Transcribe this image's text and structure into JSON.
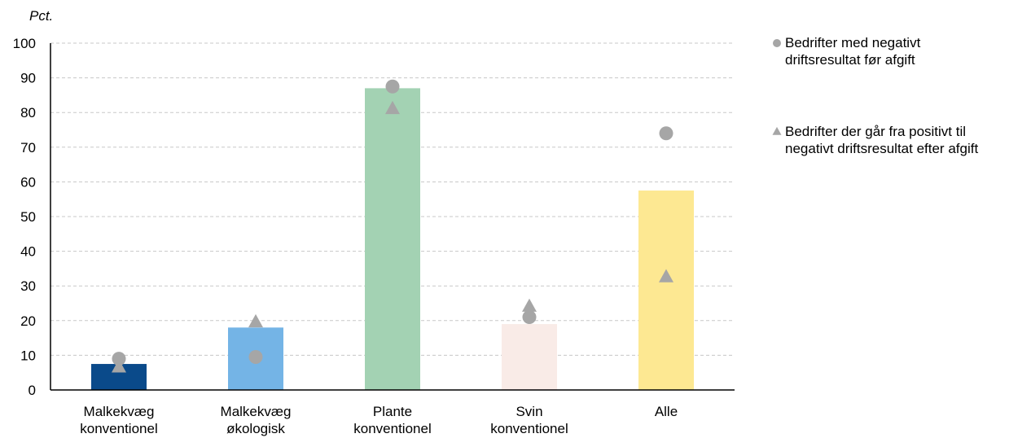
{
  "chart_data": {
    "type": "bar",
    "unit_label": "Pct.",
    "ylim": [
      0,
      100
    ],
    "yticks": [
      0,
      10,
      20,
      30,
      40,
      50,
      60,
      70,
      80,
      90,
      100
    ],
    "grid": true,
    "legend_position": "right",
    "categories": [
      [
        "Malkekvæg",
        "konventionel"
      ],
      [
        "Malkekvæg",
        "økologisk"
      ],
      [
        "Plante",
        "konventionel"
      ],
      [
        "Svin",
        "konventionel"
      ],
      [
        "Alle"
      ]
    ],
    "bar_values": [
      7.5,
      18,
      87,
      19,
      57.5
    ],
    "bar_colors": [
      "#0a4a8a",
      "#74b4e6",
      "#a3d2b3",
      "#f9ebe7",
      "#fde892"
    ],
    "series": [
      {
        "name": "Bedrifter med negativt driftsresultat før afgift",
        "legend_lines": [
          "Bedrifter med negativt",
          "driftsresultat før afgift"
        ],
        "marker": "circle",
        "color": "#a6a6a6",
        "values": [
          9,
          9.5,
          87.5,
          21,
          74
        ]
      },
      {
        "name": "Bedrifter der går fra positivt til negativt driftsresultat efter afgift",
        "legend_lines": [
          "Bedrifter der går fra positivt til",
          "negativt driftsresultat efter afgift"
        ],
        "marker": "triangle",
        "color": "#a6a6a6",
        "values": [
          6.5,
          19.5,
          81,
          24,
          32.5
        ]
      }
    ]
  }
}
